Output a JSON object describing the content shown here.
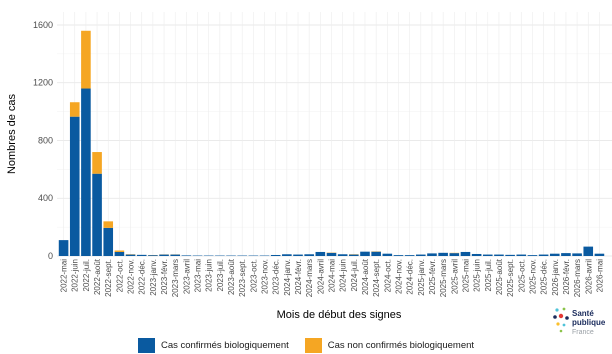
{
  "chart_data": {
    "type": "bar",
    "stacked": true,
    "xlabel": "Mois de début des signes",
    "ylabel": "Nombres de cas",
    "ylim": [
      0,
      1690
    ],
    "yticks": [
      0,
      400,
      800,
      1200,
      1600
    ],
    "grid": true,
    "legend_position": "bottom",
    "categories": [
      "2022-mai",
      "2022-juin",
      "2022-juil.",
      "2022-août",
      "2022-sept.",
      "2022-oct.",
      "2022-nov.",
      "2022-déc.",
      "2023-janv.",
      "2023-févr.",
      "2023-mars",
      "2023-avril",
      "2023-mai",
      "2023-juin",
      "2023-juil.",
      "2023-août",
      "2023-sept.",
      "2023-oct.",
      "2023-nov.",
      "2023-déc.",
      "2024-janv.",
      "2024-févr.",
      "2024-mars",
      "2024-avril",
      "2024-mai",
      "2024-juin",
      "2024-juil.",
      "2024-août",
      "2024-sept.",
      "2024-oct.",
      "2024-nov.",
      "2024-déc.",
      "2025-janv.",
      "2025-févr.",
      "2025-mars",
      "2025-avril",
      "2025-mai",
      "2025-juin",
      "2025-juil.",
      "2025-août",
      "2025-sept.",
      "2025-oct.",
      "2025-nov.",
      "2025-déc.",
      "2026-janv.",
      "2026-févr.",
      "2026-mars",
      "2026-avril",
      "2026-mai"
    ],
    "series": [
      {
        "name": "Cas confirmés biologiquement",
        "color": "#0a5aa0",
        "values": [
          110,
          965,
          1160,
          570,
          195,
          28,
          10,
          8,
          6,
          10,
          10,
          4,
          3,
          3,
          3,
          3,
          3,
          3,
          3,
          7,
          12,
          10,
          12,
          28,
          22,
          12,
          10,
          30,
          30,
          16,
          6,
          6,
          10,
          18,
          22,
          20,
          28,
          14,
          10,
          10,
          8,
          10,
          6,
          10,
          16,
          20,
          18,
          65,
          16
        ]
      },
      {
        "name": "Cas non confirmés biologiquement",
        "color": "#f5a623",
        "values": [
          0,
          100,
          400,
          150,
          45,
          10,
          2,
          0,
          1,
          1,
          1,
          0,
          0,
          0,
          0,
          0,
          0,
          0,
          0,
          0,
          0,
          0,
          0,
          0,
          2,
          0,
          2,
          0,
          2,
          0,
          0,
          0,
          0,
          0,
          0,
          2,
          0,
          0,
          0,
          0,
          0,
          0,
          0,
          0,
          0,
          0,
          0,
          0,
          0
        ]
      }
    ]
  },
  "legend": {
    "item1": "Cas confirmés biologiquement",
    "item2": "Cas non confirmés biologiquement",
    "color1": "#0a5aa0",
    "color2": "#f5a623"
  },
  "logo": {
    "line1": "Santé",
    "line2": "publique",
    "line3": "France"
  }
}
